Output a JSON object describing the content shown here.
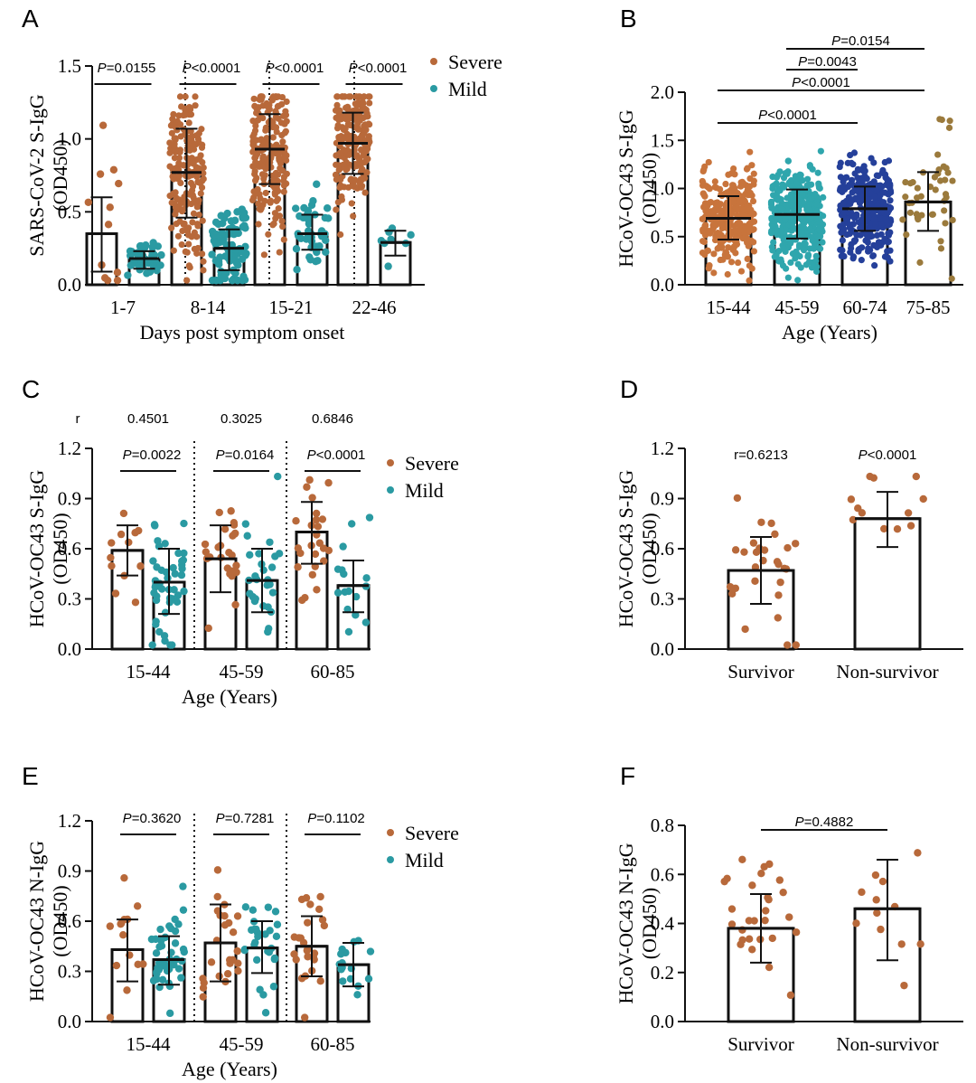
{
  "colors": {
    "severe": "#b8693a",
    "mild": "#2a9aa2",
    "b1": "#c8743c",
    "b2": "#2fa6ad",
    "b3": "#25409a",
    "b4": "#9b7a3c"
  },
  "chart_data": [
    {
      "id": "A",
      "type": "bar",
      "letter": "A",
      "ylabel": [
        "SARS-CoV-2 S-IgG",
        "(OD450)"
      ],
      "xlabel": "Days post symptom onset",
      "ylim": [
        0,
        1.5
      ],
      "yticks": [
        "0.0",
        "0.5",
        "1.0",
        "1.5"
      ],
      "categories": [
        "1-7",
        "8-14",
        "15-21",
        "22-46"
      ],
      "legend": [
        "Severe",
        "Mild"
      ],
      "series": [
        {
          "name": "Severe",
          "values": [
            0.35,
            0.77,
            0.93,
            0.97
          ],
          "sd_low": [
            0.09,
            0.46,
            0.69,
            0.76
          ],
          "sd_high": [
            0.6,
            1.07,
            1.17,
            1.18
          ],
          "n": [
            12,
            180,
            200,
            220
          ]
        },
        {
          "name": "Mild",
          "values": [
            0.18,
            0.25,
            0.35,
            0.29
          ],
          "sd_low": [
            0.11,
            0.1,
            0.24,
            0.2
          ],
          "sd_high": [
            0.23,
            0.38,
            0.48,
            0.37
          ],
          "n": [
            40,
            90,
            45,
            8
          ]
        }
      ],
      "pvalues": [
        "P=0.0155",
        "P<0.0001",
        "P<0.0001",
        "P<0.0001"
      ]
    },
    {
      "id": "B",
      "type": "bar",
      "letter": "B",
      "ylabel": [
        "HCoV-OC43 S-IgG",
        "(OD450)"
      ],
      "xlabel": "Age (Years)",
      "ylim": [
        0,
        2.0
      ],
      "yticks": [
        "0.0",
        "0.5",
        "1.0",
        "1.5",
        "2.0"
      ],
      "categories": [
        "15-44",
        "45-59",
        "60-74",
        "75-85"
      ],
      "series": [
        {
          "name": "",
          "values": [
            0.69,
            0.73,
            0.79,
            0.86
          ],
          "sd_low": [
            0.47,
            0.48,
            0.56,
            0.56
          ],
          "sd_high": [
            0.92,
            0.99,
            1.02,
            1.17
          ],
          "n": [
            300,
            350,
            320,
            45
          ]
        }
      ],
      "comparisons": [
        {
          "label": "P=0.0154",
          "from": 1,
          "to": 3
        },
        {
          "label": "P=0.0043",
          "from": 1,
          "to": 2
        },
        {
          "label": "P<0.0001",
          "from": 0,
          "to": 3
        },
        {
          "label": "P<0.0001",
          "from": 0,
          "to": 2
        }
      ]
    },
    {
      "id": "C",
      "type": "bar",
      "letter": "C",
      "ylabel": [
        "HCoV-OC43 S-IgG",
        "(OD450)"
      ],
      "xlabel": "Age (Years)",
      "ylim": [
        0,
        1.2
      ],
      "yticks": [
        "0.0",
        "0.3",
        "0.6",
        "0.9",
        "1.2"
      ],
      "categories": [
        "15-44",
        "45-59",
        "60-85"
      ],
      "legend": [
        "Severe",
        "Mild"
      ],
      "series": [
        {
          "name": "Severe",
          "values": [
            0.59,
            0.54,
            0.7
          ],
          "sd_low": [
            0.44,
            0.34,
            0.51
          ],
          "sd_high": [
            0.74,
            0.74,
            0.88
          ],
          "n": [
            12,
            25,
            25
          ]
        },
        {
          "name": "Mild",
          "values": [
            0.4,
            0.41,
            0.38
          ],
          "sd_low": [
            0.21,
            0.22,
            0.22
          ],
          "sd_high": [
            0.6,
            0.6,
            0.53
          ],
          "n": [
            45,
            28,
            16
          ]
        }
      ],
      "r_label": "r",
      "r_values": [
        "0.4501",
        "0.3025",
        "0.6846"
      ],
      "pvalues": [
        "P=0.0022",
        "P=0.0164",
        "P<0.0001"
      ]
    },
    {
      "id": "D",
      "type": "bar",
      "letter": "D",
      "ylabel": [
        "HCoV-OC43 S-IgG",
        "(OD450)"
      ],
      "ylim": [
        0,
        1.2
      ],
      "yticks": [
        "0.0",
        "0.3",
        "0.6",
        "0.9",
        "1.2"
      ],
      "categories": [
        "Survivor",
        "Non-survivor"
      ],
      "series": [
        {
          "name": "",
          "values": [
            0.47,
            0.78
          ],
          "sd_low": [
            0.27,
            0.61
          ],
          "sd_high": [
            0.67,
            0.94
          ],
          "n": [
            28,
            12
          ]
        }
      ],
      "annotations": [
        "r=0.6213",
        "P<0.0001"
      ]
    },
    {
      "id": "E",
      "type": "bar",
      "letter": "E",
      "ylabel": [
        "HCoV-OC43 N-IgG",
        "(OD450)"
      ],
      "xlabel": "Age (Years)",
      "ylim": [
        0,
        1.2
      ],
      "yticks": [
        "0.0",
        "0.3",
        "0.6",
        "0.9",
        "1.2"
      ],
      "categories": [
        "15-44",
        "45-59",
        "60-85"
      ],
      "legend": [
        "Severe",
        "Mild"
      ],
      "series": [
        {
          "name": "Severe",
          "values": [
            0.43,
            0.47,
            0.45
          ],
          "sd_low": [
            0.24,
            0.24,
            0.27
          ],
          "sd_high": [
            0.61,
            0.7,
            0.63
          ],
          "n": [
            14,
            25,
            25
          ]
        },
        {
          "name": "Mild",
          "values": [
            0.37,
            0.44,
            0.34
          ],
          "sd_low": [
            0.22,
            0.29,
            0.21
          ],
          "sd_high": [
            0.51,
            0.6,
            0.47
          ],
          "n": [
            45,
            28,
            16
          ]
        }
      ],
      "pvalues": [
        "P=0.3620",
        "P=0.7281",
        "P=0.1102"
      ]
    },
    {
      "id": "F",
      "type": "bar",
      "letter": "F",
      "ylabel": [
        "HCoV-OC43 N-IgG",
        "(OD450)"
      ],
      "ylim": [
        0,
        0.8
      ],
      "yticks": [
        "0.0",
        "0.2",
        "0.4",
        "0.6",
        "0.8"
      ],
      "categories": [
        "Survivor",
        "Non-survivor"
      ],
      "series": [
        {
          "name": "",
          "values": [
            0.38,
            0.46
          ],
          "sd_low": [
            0.24,
            0.25
          ],
          "sd_high": [
            0.52,
            0.66
          ],
          "n": [
            28,
            12
          ]
        }
      ],
      "comparisons": [
        {
          "label": "P=0.4882",
          "from": 0,
          "to": 1
        }
      ]
    }
  ]
}
